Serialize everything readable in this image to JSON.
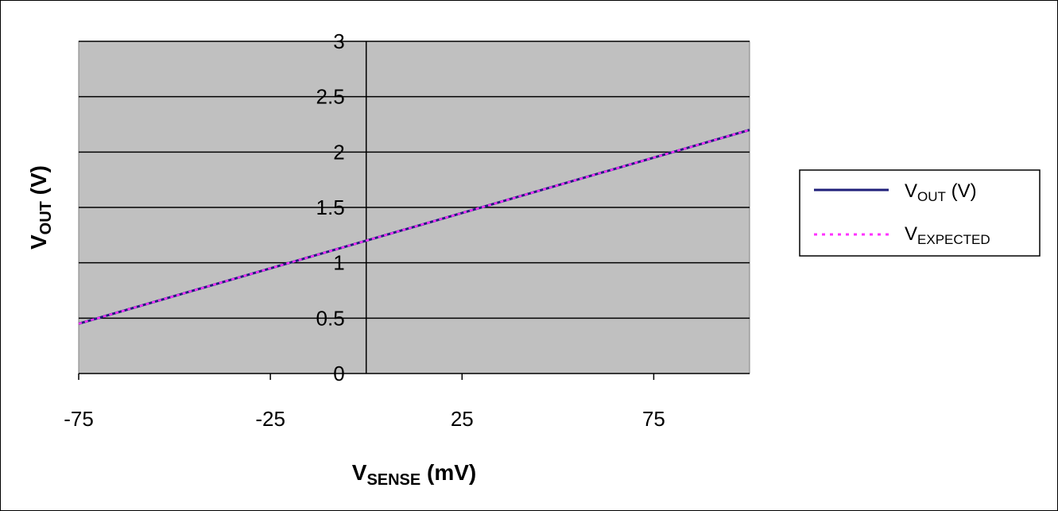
{
  "chart_data": {
    "type": "line",
    "xlabel": {
      "main": "V",
      "sub": "SENSE",
      "suffix": " (mV)"
    },
    "ylabel": {
      "main": "V",
      "sub": "OUT",
      "suffix": " (V)"
    },
    "xlim": [
      -75,
      100
    ],
    "ylim": [
      0,
      3
    ],
    "x_ticks": [
      -75,
      -25,
      25,
      75
    ],
    "y_ticks": [
      0,
      0.5,
      1,
      1.5,
      2,
      2.5,
      3
    ],
    "y_tick_labels": [
      "0",
      "0.5",
      "1",
      "1.5",
      "2",
      "2.5",
      "3"
    ],
    "x_tick_labels": [
      "-75",
      "-25",
      "25",
      "75"
    ],
    "grid": {
      "horizontal": true,
      "vertical": false
    },
    "plot_background": "#c0c0c0",
    "legend_position": "right",
    "series": [
      {
        "name": {
          "main": "V",
          "sub": "OUT",
          "suffix": " (V)"
        },
        "color": "#1f1f7a",
        "style": "solid",
        "x": [
          -75,
          0,
          100
        ],
        "y": [
          0.45,
          1.2,
          2.2
        ]
      },
      {
        "name": {
          "main": "V",
          "sub": "EXPECTED",
          "suffix": ""
        },
        "color": "#ff33ff",
        "style": "dotted",
        "x": [
          -75,
          0,
          100
        ],
        "y": [
          0.45,
          1.2,
          2.2
        ]
      }
    ]
  }
}
